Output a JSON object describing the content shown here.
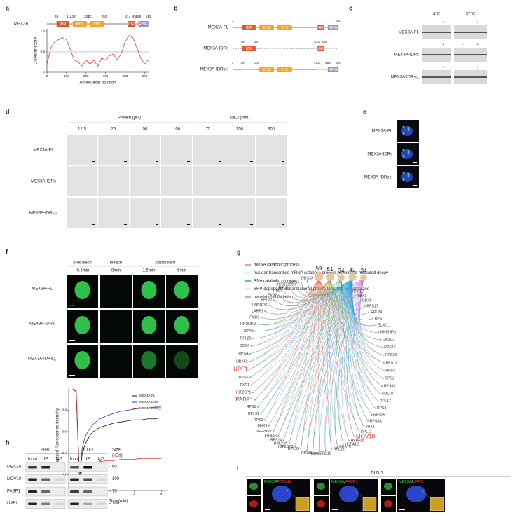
{
  "panels": {
    "a": {
      "letter": "a",
      "protein": "MEX3A",
      "domains": [
        {
          "label": "IDR",
          "start": 49,
          "end": 114
        },
        {
          "label": "KH1",
          "start": 132,
          "end": 204
        },
        {
          "label": "KH2",
          "start": 221,
          "end": 292
        },
        {
          "label": "IDR",
          "start": 414,
          "end": 450
        },
        {
          "label": "RING",
          "start": 468,
          "end": 519
        }
      ]
    },
    "b": {
      "letter": "b",
      "constructs": [
        {
          "name": "MEX3A-FL",
          "labels": [
            1,
            520
          ],
          "domains": [
            0,
            1,
            2,
            3,
            4
          ],
          "line_style": "solid",
          "dashed": []
        },
        {
          "name": "MEX3A-IDRs",
          "labels": [
            49,
            114,
            414,
            450
          ],
          "domains": [
            0,
            3
          ],
          "line_style": "dashed",
          "dashed": []
        },
        {
          "name": "MEX3A-IDRs△",
          "labels": [
            1,
            49,
            115,
            413,
            468,
            520
          ],
          "domains": [
            1,
            2,
            4
          ],
          "line_style": "solid",
          "dashed": [
            [
              49,
              115
            ],
            [
              413,
              468
            ]
          ]
        }
      ]
    },
    "c": {
      "letter": "c",
      "temps": [
        "4°C",
        "37°C"
      ],
      "signs": [
        "-",
        "+"
      ],
      "rows": [
        "MEX3A-FL",
        "MEX3A-IDRs",
        "MEX3A-IDRs△"
      ]
    },
    "d": {
      "letter": "d",
      "groups": [
        {
          "label": "Protein (μM)",
          "columns": [
            "12.5",
            "25",
            "50",
            "100"
          ]
        },
        {
          "label": "NaCl (mM)",
          "columns": [
            "75",
            "150",
            "300"
          ]
        }
      ],
      "rows": [
        "MEX3A-FL",
        "MEX3A-IDRs",
        "MEX3A-IDRs△"
      ]
    },
    "e": {
      "letter": "e",
      "rows": [
        "MEX3A-FL",
        "MEX3A-IDRs",
        "MEX3A-IDRs△"
      ]
    },
    "f": {
      "letter": "f",
      "headers": [
        {
          "label": "prebleach",
          "times": [
            "-0.5min"
          ]
        },
        {
          "label": "bleach",
          "times": [
            "0min"
          ]
        },
        {
          "label": "postbleach",
          "times": [
            "1.5min",
            "6min"
          ]
        }
      ],
      "rows": [
        "MEX3A-FL",
        "MEX3A-IDRs",
        "MEX3A-IDRs△"
      ]
    },
    "g": {
      "letter": "g",
      "hub_color": "#e6c79c",
      "terms": [
        {
          "label": "mRNA catabolic process",
          "color": "#e8665f",
          "count": 59
        },
        {
          "label": "nuclear-transcribed mRNA catabolic process, nonsense-mediated decay",
          "color": "#9ea13a",
          "count": 51
        },
        {
          "label": "RNA catabolic process",
          "color": "#22a365",
          "count": 34
        },
        {
          "label": "SRP-dependent cotranslational protein targeting to membrane",
          "color": "#2aa7d8",
          "count": 42
        },
        {
          "label": "translational initiation",
          "color": "#c46fd6",
          "count": 34
        }
      ],
      "genes": [
        {
          "name": "DDX3X"
        },
        {
          "name": "DDX1"
        },
        {
          "name": "KHDRBS1"
        },
        {
          "name": "RPL8"
        },
        {
          "name": "RPL7"
        },
        {
          "name": "FXR2"
        },
        {
          "name": "RPL22"
        },
        {
          "name": "HNRNPC"
        },
        {
          "name": "LARP1"
        },
        {
          "name": "FMR1"
        },
        {
          "name": "HNRNPM"
        },
        {
          "name": "HSPA8"
        },
        {
          "name": "RPL29"
        },
        {
          "name": "DDX6"
        },
        {
          "name": "RPSA"
        },
        {
          "name": "UBA52"
        },
        {
          "name": "UPF1",
          "color": "#e0302a"
        },
        {
          "name": "RPS6"
        },
        {
          "name": "FXR1"
        },
        {
          "name": "IGF2BP1"
        },
        {
          "name": "PABP1",
          "color": "#e0302a"
        },
        {
          "name": "RPS5"
        },
        {
          "name": "RPL31"
        },
        {
          "name": "RPS9"
        },
        {
          "name": "DHX9"
        },
        {
          "name": "IGF2BP2"
        },
        {
          "name": "EIF4A3"
        },
        {
          "name": "RPS14"
        },
        {
          "name": "RPL23A"
        },
        {
          "name": "IGF2BP3"
        },
        {
          "name": "RPL35"
        },
        {
          "name": "RPS11"
        },
        {
          "name": "PABP4"
        },
        {
          "name": "RPS19"
        },
        {
          "name": "RPS18"
        },
        {
          "name": "RPL13"
        },
        {
          "name": "RPS15"
        },
        {
          "name": "HSPA1B"
        },
        {
          "name": "HSPA1A"
        },
        {
          "name": "MOV10",
          "color": "#e0302a"
        },
        {
          "name": "RPL11"
        },
        {
          "name": "YBX1"
        },
        {
          "name": "RPS3A"
        },
        {
          "name": "RPS25"
        },
        {
          "name": "RPS8"
        },
        {
          "name": "RPL17"
        },
        {
          "name": "RPL10"
        },
        {
          "name": "RPS4X"
        },
        {
          "name": "RPS2"
        },
        {
          "name": "RPS3"
        },
        {
          "name": "RPS13"
        },
        {
          "name": "RPS20"
        },
        {
          "name": "RPS16"
        },
        {
          "name": "CASC3"
        },
        {
          "name": "HNRNPU"
        },
        {
          "name": "ELAVL1"
        },
        {
          "name": "RPS7"
        },
        {
          "name": "RPL24"
        },
        {
          "name": "RPS17"
        },
        {
          "name": "DDX5"
        },
        {
          "name": "YBX3"
        },
        {
          "name": "RPS12"
        }
      ]
    },
    "h": {
      "letter": "h",
      "cell_lines": [
        "293T",
        "DLD-1"
      ],
      "lanes": [
        "Input",
        "IP",
        "IgG"
      ],
      "size_header": [
        "Size",
        "(kDa)"
      ],
      "rows": [
        {
          "protein": "MEX3A",
          "size": "60"
        },
        {
          "protein": "MOV10",
          "size": "100"
        },
        {
          "protein": "PABP1",
          "size": "75"
        },
        {
          "protein": "UPF1",
          "size": "100"
        }
      ]
    },
    "i": {
      "letter": "i",
      "title": "DLD-1",
      "separator": "/",
      "stains": [
        [
          "MEX3A",
          "MOV10"
        ],
        [
          "MEX3A",
          "PABP1"
        ],
        [
          "MEX3A",
          "UPF1"
        ]
      ]
    }
  },
  "domain_colors": {
    "IDR": "#e4572e",
    "KH1": "#f4a52c",
    "KH2": "#f4a52c",
    "RING": "#a08bc9"
  },
  "chart_data": [
    {
      "type": "line",
      "xlabel": "Amino acid position",
      "ylabel": "Disorder score",
      "x": [
        0,
        20,
        40,
        60,
        80,
        100,
        120,
        140,
        160,
        180,
        200,
        220,
        240,
        260,
        280,
        300,
        320,
        340,
        360,
        380,
        400,
        420,
        440,
        460,
        480,
        500,
        520
      ],
      "values": [
        0.2,
        0.6,
        0.75,
        0.8,
        0.85,
        0.8,
        0.55,
        0.3,
        0.25,
        0.15,
        0.3,
        0.2,
        0.3,
        0.15,
        0.35,
        0.3,
        0.4,
        0.45,
        0.3,
        0.45,
        0.75,
        0.9,
        0.85,
        0.6,
        0.35,
        0.2,
        0.3
      ],
      "color": "#e53935",
      "threshold": 0.5,
      "xlim": [
        0,
        520
      ],
      "ylim": [
        0,
        1.05
      ],
      "xticks": [
        0,
        100,
        200,
        300,
        400,
        500
      ],
      "yticks": [
        0,
        0.5,
        {
          "value": 1,
          "label": "1.0"
        }
      ]
    },
    {
      "type": "line",
      "xlabel": "Time(min)",
      "ylabel": "Normalized fluorescence intensity",
      "x": [
        -0.5,
        -0.25,
        0,
        0.1,
        0.2,
        0.4,
        0.6,
        0.8,
        1,
        1.5,
        2,
        2.5,
        3,
        3.5,
        4,
        4.5,
        5,
        5.5,
        6
      ],
      "series": [
        {
          "name": "MEX3A-FL",
          "color": "#111111",
          "values": [
            1.0,
            0.98,
            0.13,
            0.3,
            0.4,
            0.48,
            0.53,
            0.57,
            0.6,
            0.64,
            0.66,
            0.68,
            0.69,
            0.7,
            0.71,
            0.71,
            0.72,
            0.72,
            0.73
          ]
        },
        {
          "name": "MEX3A-IDRs",
          "color": "#2540b8",
          "values": [
            1.0,
            0.98,
            0.15,
            0.35,
            0.45,
            0.55,
            0.6,
            0.64,
            0.67,
            0.72,
            0.75,
            0.77,
            0.79,
            0.8,
            0.81,
            0.82,
            0.82,
            0.83,
            0.83
          ]
        },
        {
          "name": "MEX3A-IDRs△",
          "color": "#e02020",
          "values": [
            1.0,
            0.97,
            0.12,
            0.2,
            0.24,
            0.27,
            0.29,
            0.3,
            0.31,
            0.32,
            0.33,
            0.33,
            0.34,
            0.34,
            0.34,
            0.35,
            0.35,
            0.35,
            0.35
          ]
        }
      ],
      "xlim": [
        -0.8,
        6.5
      ],
      "ylim": [
        0.05,
        1.0
      ],
      "xticks": [
        0,
        2,
        4,
        6
      ],
      "yticks": [
        0.2,
        0.4,
        0.6,
        0.8
      ],
      "legend": "upper-right"
    }
  ]
}
